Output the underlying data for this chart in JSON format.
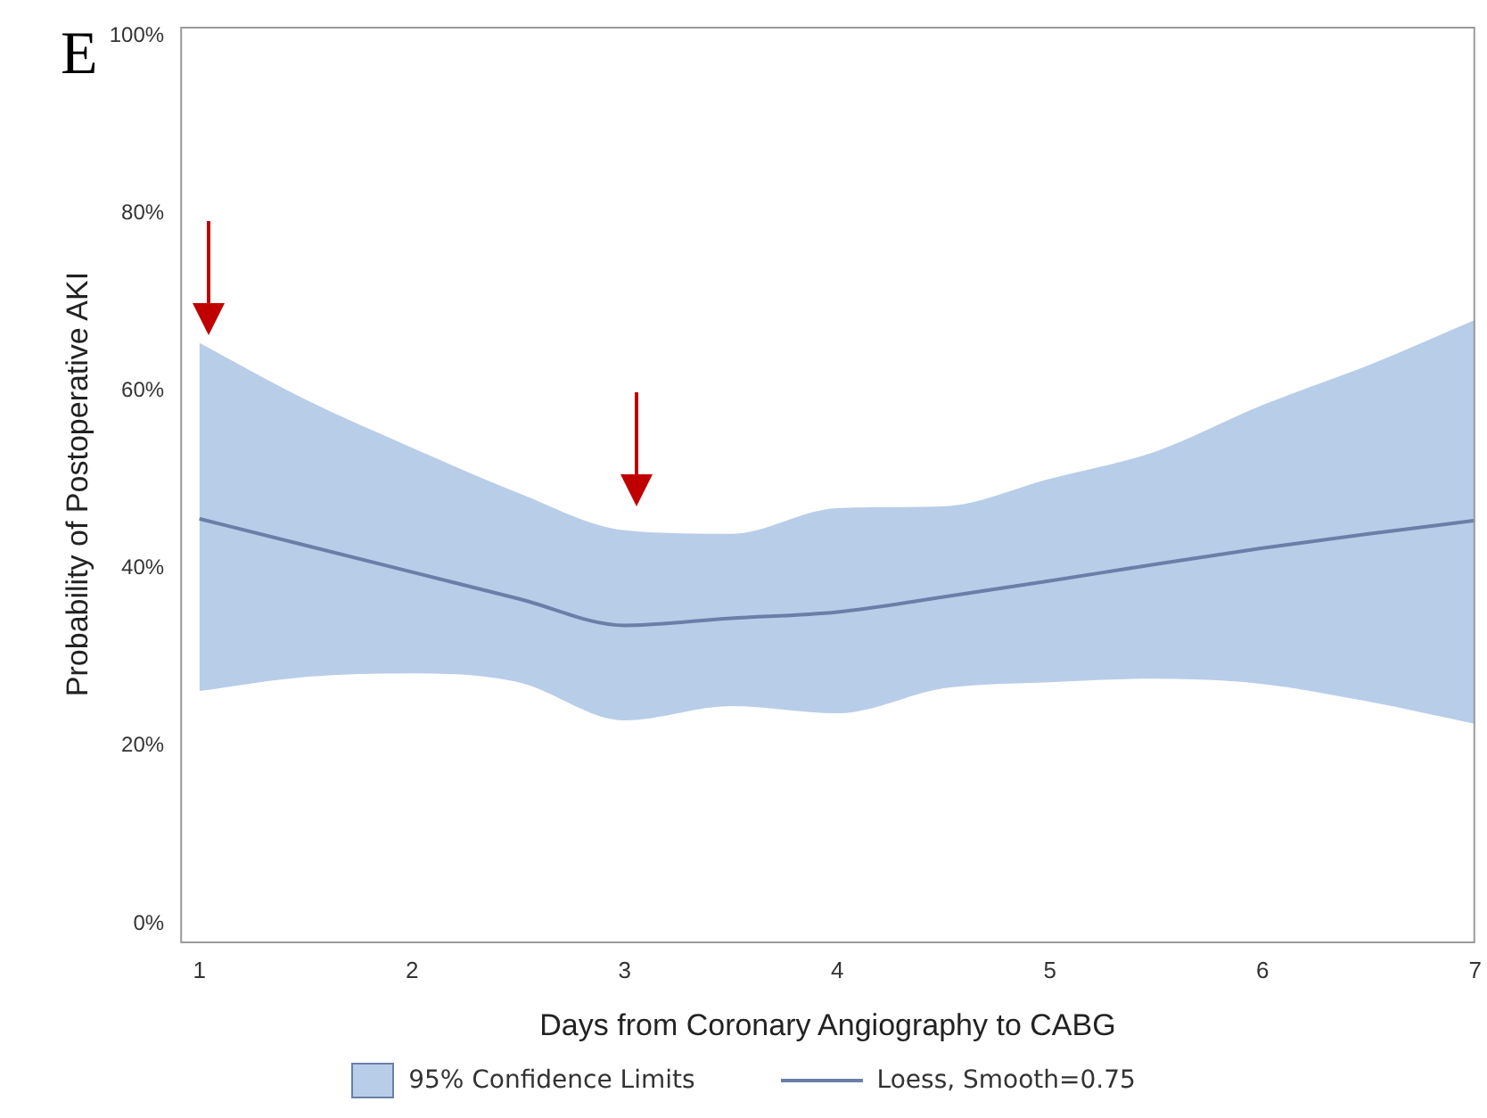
{
  "chart_data": {
    "type": "line",
    "xlabel": "Days from Coronary Angiography to CABG",
    "ylabel": "Probability of Postoperative AKI",
    "annotations": [
      "E",
      "95% Confidence Limits"
    ],
    "xlim": [
      0.91,
      7
    ],
    "xticks": [
      1,
      2,
      3,
      4,
      5,
      6,
      7
    ],
    "ylim": [
      -2,
      101
    ],
    "yticks": [
      {
        "value": 0,
        "label": "0%"
      },
      {
        "value": 20,
        "label": "20%"
      },
      {
        "value": 40,
        "label": "40%"
      },
      {
        "value": 60,
        "label": "60%"
      },
      {
        "value": 80,
        "label": "80%"
      },
      {
        "value": 100,
        "label": "100%"
      }
    ],
    "grid": false,
    "legend": "bottom",
    "marker": "none",
    "line_style": "solid",
    "x": [
      1,
      1.5,
      2,
      2.5,
      3,
      3.5,
      4,
      4.5,
      5,
      5.5,
      6,
      6.5,
      7
    ],
    "series": [
      {
        "name": "Loess, Smooth=0.75",
        "color": "#6a7fa8",
        "values": [
          45.6,
          42.6,
          39.6,
          36.6,
          33.6,
          34.4,
          35.1,
          36.8,
          38.6,
          40.5,
          42.3,
          43.9,
          45.4
        ],
        "lower": [
          26.2,
          27.8,
          28.2,
          27.2,
          22.9,
          24.5,
          23.7,
          26.5,
          27.2,
          27.6,
          27,
          25,
          22.5
        ],
        "upper": [
          65.4,
          59,
          53.6,
          48.5,
          44.3,
          43.9,
          46.8,
          47,
          50.1,
          53.2,
          58.4,
          62.9,
          68
        ]
      }
    ]
  }
}
